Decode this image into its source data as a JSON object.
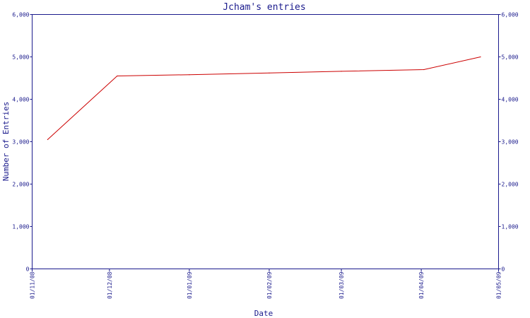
{
  "chart_data": {
    "type": "line",
    "title": "Jcham's entries",
    "xlabel": "Date",
    "ylabel": "Number of Entries",
    "ylim": [
      0,
      6000
    ],
    "y_ticks": [
      0,
      1000,
      2000,
      3000,
      4000,
      5000,
      6000
    ],
    "y_tick_labels": [
      "0",
      "1,000",
      "2,000",
      "3,000",
      "4,000",
      "5,000",
      "6,000"
    ],
    "x_ticks": [
      "01/11/08",
      "01/12/08",
      "01/01/09",
      "01/02/09",
      "01/03/09",
      "01/04/09",
      "01/05/09"
    ],
    "xlim": [
      "2008-11-01",
      "2009-05-01"
    ],
    "grid": false,
    "colors": {
      "axis": "#1a1a8c",
      "line": "#cc0000"
    },
    "series": [
      {
        "x": [
          "2008-11-07",
          "2008-12-04",
          "2009-01-01",
          "2009-02-01",
          "2009-03-01",
          "2009-04-02",
          "2009-04-24"
        ],
        "y": [
          3050,
          4550,
          4580,
          4620,
          4660,
          4700,
          5000
        ]
      }
    ]
  }
}
